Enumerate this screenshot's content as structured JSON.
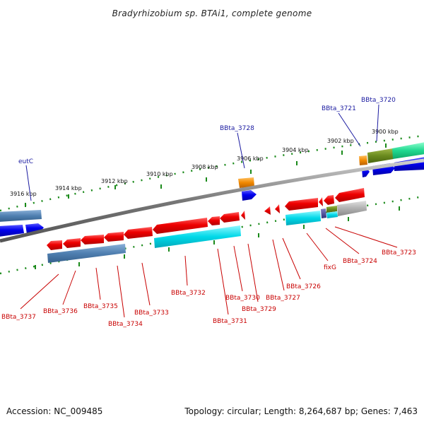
{
  "title": "Bradyrhizobium sp. BTAi1, complete genome",
  "footer": {
    "accession": "Accession: NC_009485",
    "topology": "Topology: circular; Length: 8,264,687 bp; Genes: 7,463"
  },
  "colors": {
    "forward_gene": "#0000ee",
    "reverse_gene": "#ee0000",
    "steel": "#4f7fb0",
    "cyan": "#00d8e8",
    "orange": "#f08800",
    "olive": "#6a8a1e",
    "teal": "#20d890",
    "gray": "#b0b0b0",
    "tick": "#1a8a1a",
    "blue_label": "#1a1aa0",
    "red_label": "#c80000"
  },
  "scale_labels": [
    "3916 kbp",
    "3914 kbp",
    "3912 kbp",
    "3910 kbp",
    "3908 kbp",
    "3906 kbp",
    "3904 kbp",
    "3902 kbp",
    "3900 kbp"
  ],
  "top_labels": [
    "eutC",
    "BBta_3728",
    "BBta_3721",
    "BBta_3720"
  ],
  "bottom_labels": [
    "BBta_3737",
    "BBta_3736",
    "BBta_3735",
    "BBta_3734",
    "BBta_3733",
    "BBta_3732",
    "BBta_3731",
    "BBta_3730",
    "BBta_3729",
    "BBta_3727",
    "BBta_3726",
    "fixG",
    "BBta_3724",
    "BBta_3723"
  ]
}
